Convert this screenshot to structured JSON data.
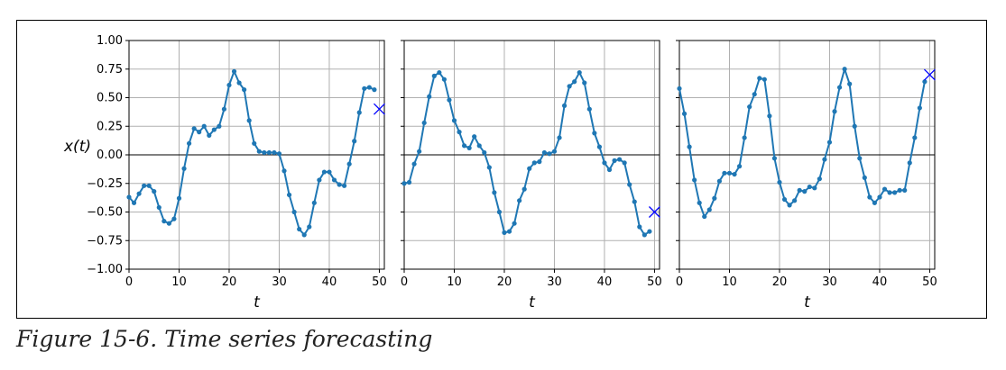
{
  "caption": "Figure 15-6. Time series forecasting",
  "colors": {
    "series": "#1f77b4",
    "target": "#0000ff",
    "grid": "#b0b0b0",
    "zero_line": "#000000"
  },
  "chart_data": [
    {
      "type": "line",
      "xlabel": "t",
      "ylabel": "x(t)",
      "xlim": [
        0,
        51
      ],
      "ylim": [
        -1.0,
        1.0
      ],
      "xticks": [
        0,
        10,
        20,
        30,
        40,
        50
      ],
      "yticks": [
        -1.0,
        -0.75,
        -0.5,
        -0.25,
        0.0,
        0.25,
        0.5,
        0.75,
        1.0
      ],
      "ytick_labels": [
        "−1.00",
        "−0.75",
        "−0.50",
        "−0.25",
        "0.00",
        "0.25",
        "0.50",
        "0.75",
        "1.00"
      ],
      "grid": true,
      "zero_line": true,
      "x": [
        0,
        1,
        2,
        3,
        4,
        5,
        6,
        7,
        8,
        9,
        10,
        11,
        12,
        13,
        14,
        15,
        16,
        17,
        18,
        19,
        20,
        21,
        22,
        23,
        24,
        25,
        26,
        27,
        28,
        29,
        30,
        31,
        32,
        33,
        34,
        35,
        36,
        37,
        38,
        39,
        40,
        41,
        42,
        43,
        44,
        45,
        46,
        47,
        48,
        49
      ],
      "values": [
        -0.37,
        -0.42,
        -0.34,
        -0.27,
        -0.27,
        -0.32,
        -0.46,
        -0.58,
        -0.6,
        -0.56,
        -0.38,
        -0.12,
        0.1,
        0.23,
        0.2,
        0.25,
        0.17,
        0.22,
        0.25,
        0.4,
        0.61,
        0.73,
        0.63,
        0.57,
        0.3,
        0.1,
        0.03,
        0.02,
        0.02,
        0.02,
        0.01,
        -0.14,
        -0.35,
        -0.5,
        -0.65,
        -0.7,
        -0.63,
        -0.42,
        -0.22,
        -0.15,
        -0.15,
        -0.22,
        -0.26,
        -0.27,
        -0.08,
        0.12,
        0.37,
        0.58,
        0.59,
        0.57
      ],
      "target": {
        "x": 50,
        "y": 0.4
      }
    },
    {
      "type": "line",
      "xlabel": "t",
      "xlim": [
        0,
        51
      ],
      "ylim": [
        -1.0,
        1.0
      ],
      "xticks": [
        0,
        10,
        20,
        30,
        40,
        50
      ],
      "grid": true,
      "zero_line": true,
      "x": [
        0,
        1,
        2,
        3,
        4,
        5,
        6,
        7,
        8,
        9,
        10,
        11,
        12,
        13,
        14,
        15,
        16,
        17,
        18,
        19,
        20,
        21,
        22,
        23,
        24,
        25,
        26,
        27,
        28,
        29,
        30,
        31,
        32,
        33,
        34,
        35,
        36,
        37,
        38,
        39,
        40,
        41,
        42,
        43,
        44,
        45,
        46,
        47,
        48,
        49
      ],
      "values": [
        -0.25,
        -0.24,
        -0.08,
        0.03,
        0.28,
        0.51,
        0.69,
        0.72,
        0.66,
        0.48,
        0.3,
        0.2,
        0.08,
        0.06,
        0.16,
        0.08,
        0.02,
        -0.11,
        -0.33,
        -0.5,
        -0.68,
        -0.67,
        -0.6,
        -0.4,
        -0.3,
        -0.12,
        -0.07,
        -0.06,
        0.02,
        0.01,
        0.03,
        0.15,
        0.43,
        0.6,
        0.64,
        0.72,
        0.63,
        0.4,
        0.19,
        0.07,
        -0.07,
        -0.13,
        -0.05,
        -0.04,
        -0.07,
        -0.26,
        -0.41,
        -0.63,
        -0.7,
        -0.67
      ],
      "target": {
        "x": 50,
        "y": -0.5
      }
    },
    {
      "type": "line",
      "xlabel": "t",
      "xlim": [
        0,
        51
      ],
      "ylim": [
        -1.0,
        1.0
      ],
      "xticks": [
        0,
        10,
        20,
        30,
        40,
        50
      ],
      "grid": true,
      "zero_line": true,
      "x": [
        0,
        1,
        2,
        3,
        4,
        5,
        6,
        7,
        8,
        9,
        10,
        11,
        12,
        13,
        14,
        15,
        16,
        17,
        18,
        19,
        20,
        21,
        22,
        23,
        24,
        25,
        26,
        27,
        28,
        29,
        30,
        31,
        32,
        33,
        34,
        35,
        36,
        37,
        38,
        39,
        40,
        41,
        42,
        43,
        44,
        45,
        46,
        47,
        48,
        49
      ],
      "values": [
        0.58,
        0.36,
        0.07,
        -0.22,
        -0.42,
        -0.54,
        -0.48,
        -0.38,
        -0.23,
        -0.16,
        -0.16,
        -0.17,
        -0.1,
        0.15,
        0.42,
        0.53,
        0.67,
        0.66,
        0.34,
        -0.03,
        -0.24,
        -0.39,
        -0.44,
        -0.4,
        -0.31,
        -0.32,
        -0.28,
        -0.29,
        -0.21,
        -0.04,
        0.11,
        0.38,
        0.59,
        0.75,
        0.62,
        0.25,
        -0.03,
        -0.2,
        -0.37,
        -0.42,
        -0.37,
        -0.3,
        -0.33,
        -0.33,
        -0.31,
        -0.31,
        -0.07,
        0.15,
        0.41,
        0.64
      ],
      "target": {
        "x": 50,
        "y": 0.7
      }
    }
  ]
}
